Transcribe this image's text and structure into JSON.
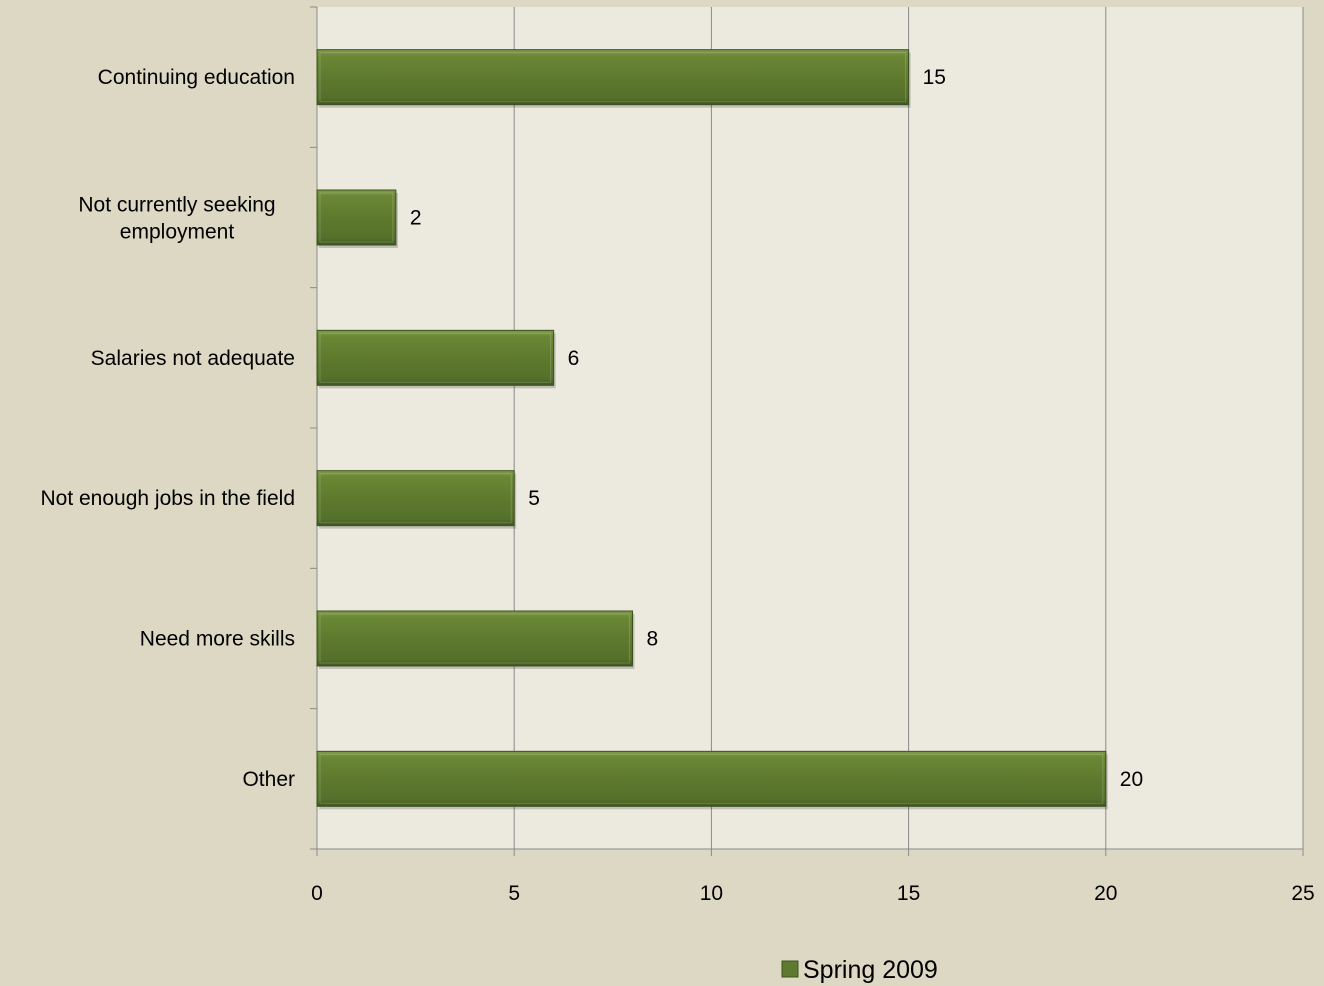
{
  "chart_data": {
    "type": "bar",
    "orientation": "horizontal",
    "categories": [
      "Continuing education",
      "Not currently seeking employment",
      "Salaries not adequate",
      "Not enough jobs in the field",
      "Need more skills",
      "Other"
    ],
    "category_lines": [
      [
        "Continuing education"
      ],
      [
        "Not currently seeking",
        "employment"
      ],
      [
        "Salaries not adequate"
      ],
      [
        "Not enough jobs in the field"
      ],
      [
        "Need more skills"
      ],
      [
        "Other"
      ]
    ],
    "series": [
      {
        "name": "Spring 2009",
        "values": [
          15,
          2,
          6,
          5,
          8,
          20
        ],
        "color": "#5f7a2e"
      }
    ],
    "data_labels": [
      "15",
      "2",
      "6",
      "5",
      "8",
      "20"
    ],
    "xlim": [
      0,
      25
    ],
    "xticks": [
      0,
      5,
      10,
      15,
      20,
      25
    ],
    "xtick_labels": [
      "0",
      "5",
      "10",
      "15",
      "20",
      "25"
    ],
    "grid": "vertical",
    "legend_position": "bottom",
    "plot_background": "#ece9de",
    "page_background": "#ddd8c4",
    "gridline_color": "#8a8a8a"
  }
}
